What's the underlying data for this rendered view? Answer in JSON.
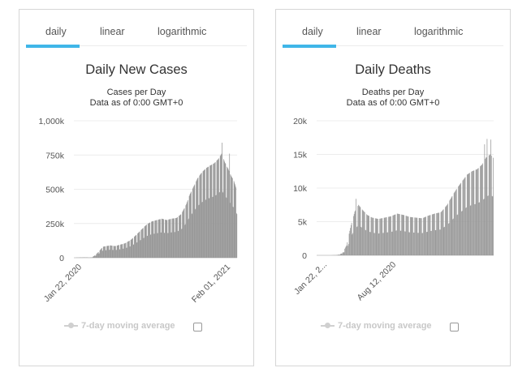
{
  "panels": [
    {
      "tabs": [
        "daily",
        "linear",
        "logarithmic"
      ],
      "active_tab": "daily",
      "legend_label": "7-day moving average",
      "chart_data": {
        "type": "bar",
        "title": "Daily New Cases",
        "subtitle": [
          "Cases per Day",
          "Data as of 0:00 GMT+0"
        ],
        "ylim": [
          0,
          1000000
        ],
        "y_ticks": [
          0,
          250000,
          500000,
          750000,
          1000000
        ],
        "y_tick_labels": [
          "0",
          "250k",
          "500k",
          "750k",
          "1,000k"
        ],
        "x_tick_labels": [
          "Jan 22, 2020",
          "Feb 01, 2021"
        ],
        "grid": true,
        "color": "#999999",
        "anchors": [
          [
            0,
            500
          ],
          [
            10,
            2000
          ],
          [
            20,
            3000
          ],
          [
            28,
            1000
          ],
          [
            33,
            3000
          ],
          [
            40,
            20000
          ],
          [
            47,
            45000
          ],
          [
            55,
            80000
          ],
          [
            62,
            85000
          ],
          [
            70,
            90000
          ],
          [
            80,
            85000
          ],
          [
            90,
            95000
          ],
          [
            100,
            105000
          ],
          [
            112,
            130000
          ],
          [
            124,
            170000
          ],
          [
            135,
            210000
          ],
          [
            145,
            245000
          ],
          [
            155,
            265000
          ],
          [
            165,
            275000
          ],
          [
            175,
            285000
          ],
          [
            185,
            275000
          ],
          [
            195,
            285000
          ],
          [
            205,
            290000
          ],
          [
            215,
            320000
          ],
          [
            225,
            390000
          ],
          [
            232,
            460000
          ],
          [
            240,
            520000
          ],
          [
            248,
            580000
          ],
          [
            256,
            620000
          ],
          [
            264,
            650000
          ],
          [
            272,
            670000
          ],
          [
            282,
            690000
          ],
          [
            290,
            720000
          ],
          [
            297,
            760000
          ],
          [
            303,
            700000
          ],
          [
            310,
            650000
          ],
          [
            316,
            600000
          ],
          [
            322,
            560000
          ],
          [
            328,
            490000
          ]
        ],
        "weekly_dips": 0.65,
        "spikes": [
          [
            298,
            840000
          ],
          [
            313,
            760000
          ]
        ]
      }
    },
    {
      "tabs": [
        "daily",
        "linear",
        "logarithmic"
      ],
      "active_tab": "daily",
      "legend_label": "7-day moving average",
      "chart_data": {
        "type": "bar",
        "title": "Daily Deaths",
        "subtitle": [
          "Deaths per Day",
          "Data as of 0:00 GMT+0"
        ],
        "ylim": [
          0,
          20000
        ],
        "y_ticks": [
          0,
          5000,
          10000,
          15000,
          20000
        ],
        "y_tick_labels": [
          "0",
          "5k",
          "10k",
          "15k",
          "20k"
        ],
        "x_tick_labels": [
          "Jan 22, 2...",
          "Aug 12, 2020"
        ],
        "grid": true,
        "color": "#999999",
        "anchors": [
          [
            0,
            0
          ],
          [
            20,
            0
          ],
          [
            30,
            50
          ],
          [
            38,
            300
          ],
          [
            45,
            1500
          ],
          [
            52,
            4500
          ],
          [
            58,
            6500
          ],
          [
            64,
            7500
          ],
          [
            70,
            6800
          ],
          [
            78,
            6000
          ],
          [
            86,
            5600
          ],
          [
            96,
            5400
          ],
          [
            106,
            5600
          ],
          [
            116,
            5800
          ],
          [
            126,
            6200
          ],
          [
            136,
            6000
          ],
          [
            146,
            5700
          ],
          [
            156,
            5600
          ],
          [
            166,
            5500
          ],
          [
            176,
            5900
          ],
          [
            186,
            6200
          ],
          [
            196,
            6400
          ],
          [
            206,
            7500
          ],
          [
            214,
            8800
          ],
          [
            222,
            10000
          ],
          [
            230,
            11000
          ],
          [
            238,
            12000
          ],
          [
            246,
            12500
          ],
          [
            254,
            12800
          ],
          [
            262,
            13500
          ],
          [
            268,
            14500
          ],
          [
            275,
            15000
          ],
          [
            280,
            14500
          ]
        ],
        "weekly_dips": 0.6,
        "spikes": [
          [
            60,
            8400
          ],
          [
            270,
            17300
          ],
          [
            276,
            17200
          ],
          [
            266,
            16500
          ]
        ]
      }
    }
  ]
}
